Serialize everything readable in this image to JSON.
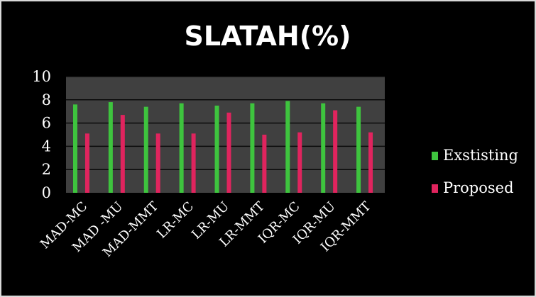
{
  "chart_data": {
    "type": "bar",
    "title": "SLATAH(%)",
    "categories": [
      "MAD-MC",
      "MAD -MU",
      "MAD-MMT",
      "LR-MC",
      "LR-MU",
      "LR-MMT",
      "IQR-MC",
      "IQR-MU",
      "IQR-MMT"
    ],
    "series": [
      {
        "name": "Exstisting",
        "values": [
          7.6,
          7.8,
          7.4,
          7.7,
          7.5,
          7.7,
          7.9,
          7.7,
          7.4
        ],
        "color": "#3ec43e"
      },
      {
        "name": "Proposed",
        "values": [
          5.1,
          6.7,
          5.1,
          5.1,
          6.9,
          5.0,
          5.2,
          7.1,
          5.2
        ],
        "color": "#e0245e"
      }
    ],
    "ylim": [
      0,
      10
    ],
    "yticks": [
      0,
      2,
      4,
      6,
      8,
      10
    ],
    "grid": true,
    "legend_position": "right",
    "plot_background": "#404040",
    "gridline_color": "#0a0a0a"
  }
}
